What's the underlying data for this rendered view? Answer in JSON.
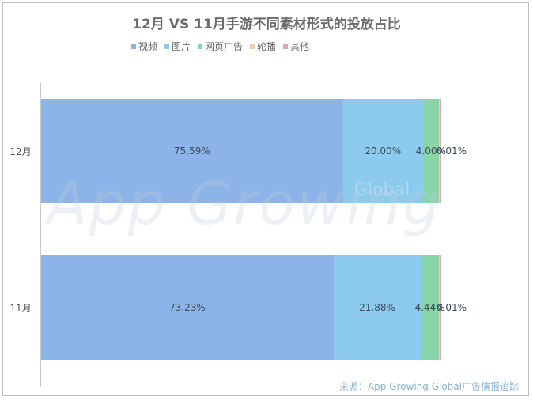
{
  "title": "12月 VS 11月手游不同素材形式的投放占比",
  "legend": [
    {
      "label": "视频",
      "color": "#8cb4e8"
    },
    {
      "label": "图片",
      "color": "#8ccbee"
    },
    {
      "label": "网页广告",
      "color": "#86d6a8"
    },
    {
      "label": "轮播",
      "color": "#e8d4a8"
    },
    {
      "label": "其他",
      "color": "#e0a8b0"
    }
  ],
  "rows": [
    {
      "label": "12月",
      "labels": [
        "75.59%",
        "20.00%",
        "4.00%",
        "0.01%"
      ]
    },
    {
      "label": "11月",
      "labels": [
        "73.23%",
        "21.88%",
        "4.44%",
        "0.01%"
      ]
    }
  ],
  "watermark": "App Growing",
  "watermark_sub": "Global",
  "source": "来源：App  Growing  Global广告情报追踪",
  "chart_data": {
    "type": "bar",
    "orientation": "horizontal",
    "stacked": true,
    "title": "12月 VS 11月手游不同素材形式的投放占比",
    "categories": [
      "12月",
      "11月"
    ],
    "series": [
      {
        "name": "视频",
        "values": [
          75.59,
          73.23
        ]
      },
      {
        "name": "图片",
        "values": [
          20.0,
          21.88
        ]
      },
      {
        "name": "网页广告",
        "values": [
          4.0,
          4.44
        ]
      },
      {
        "name": "轮播",
        "values": [
          0.4,
          0.44
        ]
      },
      {
        "name": "其他",
        "values": [
          0.01,
          0.01
        ]
      }
    ],
    "data_labels": {
      "12月": [
        "75.59%",
        "20.00%",
        "4.00%",
        "0.01%"
      ],
      "11月": [
        "73.23%",
        "21.88%",
        "4.44%",
        "0.01%"
      ]
    },
    "legend_position": "top",
    "grid": false,
    "xlim": [
      0,
      100
    ],
    "unit": "%"
  }
}
